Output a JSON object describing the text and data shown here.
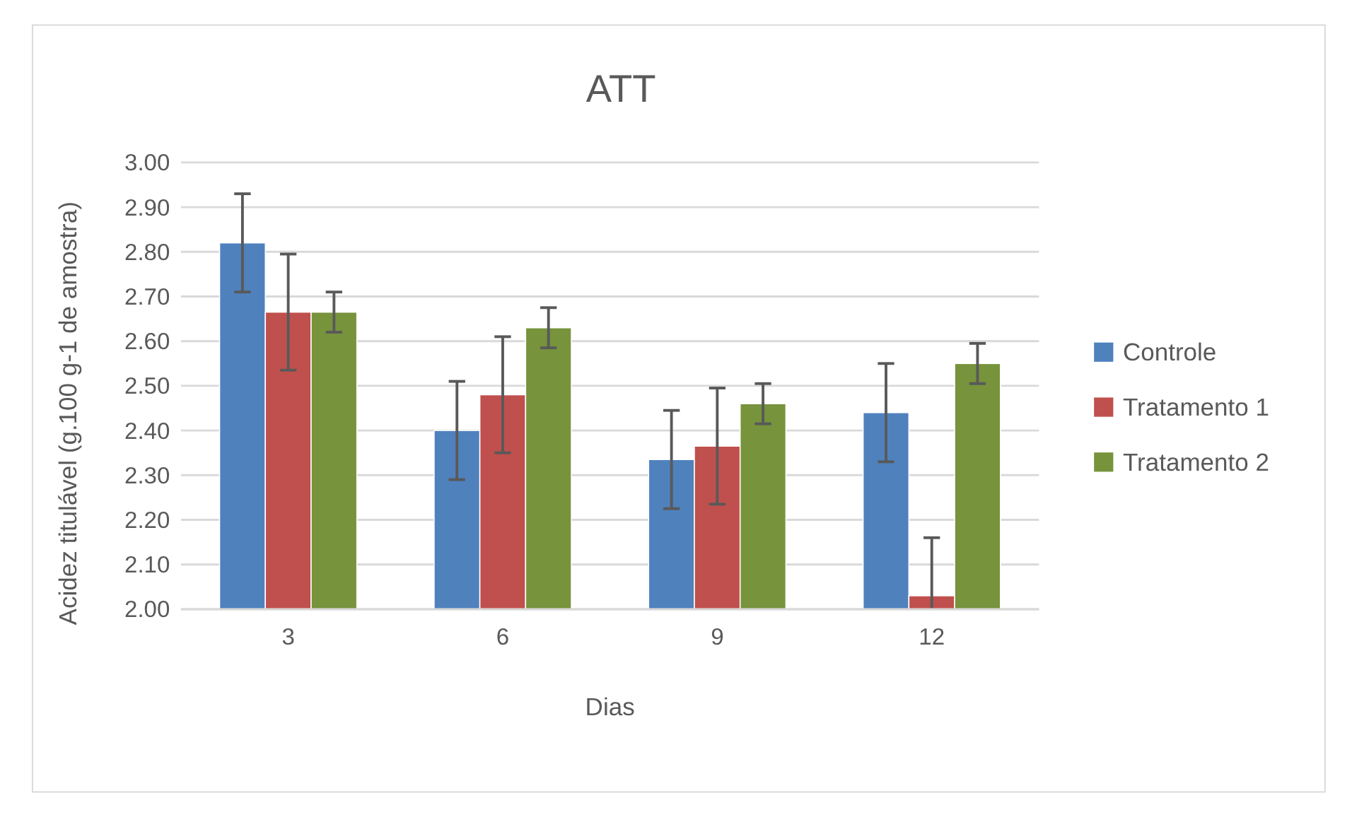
{
  "chart_data": {
    "type": "bar",
    "title": "ATT",
    "xlabel": "Dias",
    "ylabel": "Acidez titulável (g.100 g-1 de amostra)",
    "categories": [
      "3",
      "6",
      "9",
      "12"
    ],
    "series": [
      {
        "name": "Controle",
        "color": "#4f81bd",
        "values": [
          2.82,
          2.4,
          2.335,
          2.44
        ],
        "errors": [
          0.11,
          0.11,
          0.11,
          0.11
        ]
      },
      {
        "name": "Tratamento 1",
        "color": "#c0504d",
        "values": [
          2.665,
          2.48,
          2.365,
          2.03
        ],
        "errors": [
          0.13,
          0.13,
          0.13,
          [
            2.0,
            2.16
          ]
        ]
      },
      {
        "name": "Tratamento 2",
        "color": "#77933c",
        "values": [
          2.665,
          2.63,
          2.46,
          2.55
        ],
        "errors": [
          0.045,
          0.045,
          0.045,
          0.045
        ]
      }
    ],
    "ylim": [
      2.0,
      3.0
    ],
    "yticks": [
      {
        "value": 2.0,
        "label": "2.00"
      },
      {
        "value": 2.1,
        "label": "2.10"
      },
      {
        "value": 2.2,
        "label": "2.20"
      },
      {
        "value": 2.3,
        "label": "2.30"
      },
      {
        "value": 2.4,
        "label": "2.40"
      },
      {
        "value": 2.5,
        "label": "2.50"
      },
      {
        "value": 2.6,
        "label": "2.60"
      },
      {
        "value": 2.7,
        "label": "2.70"
      },
      {
        "value": 2.8,
        "label": "2.80"
      },
      {
        "value": 2.9,
        "label": "2.90"
      },
      {
        "value": 3.0,
        "label": "3.00"
      }
    ],
    "grid": "y",
    "legend": "right"
  }
}
